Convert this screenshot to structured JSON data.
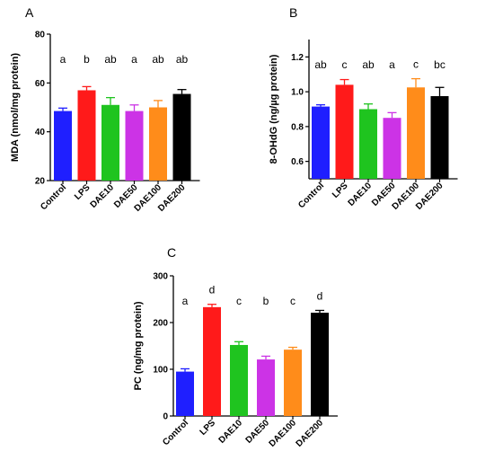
{
  "colors": {
    "Control": "#1f1fff",
    "LPS": "#ff1a1a",
    "DAE10": "#1fc41f",
    "DAE50": "#cc33e6",
    "DAE100": "#ff8c1a",
    "DAE200": "#000000"
  },
  "chart_data": [
    {
      "panel": "A",
      "type": "bar",
      "ylabel": "MDA (nmol/mg protein)",
      "ylim": [
        20,
        80
      ],
      "yticks": [
        20,
        40,
        60,
        80
      ],
      "categories": [
        "Control",
        "LPS",
        "DAE10",
        "DAE50",
        "DAE100",
        "DAE200"
      ],
      "values": [
        48.5,
        57,
        51,
        48.5,
        50,
        55.5
      ],
      "errors": [
        1.2,
        1.5,
        3,
        2.5,
        2.8,
        1.8
      ],
      "significance": [
        "a",
        "b",
        "ab",
        "a",
        "ab",
        "ab"
      ]
    },
    {
      "panel": "B",
      "type": "bar",
      "ylabel": "8-OHdG (ng/µg protein)",
      "ylim": [
        0.5,
        1.3
      ],
      "yticks": [
        0.6,
        0.8,
        1.0,
        1.2
      ],
      "yticklabels": [
        "0.6",
        "0.8",
        "1.0",
        "1.2"
      ],
      "categories": [
        "Control",
        "LPS",
        "DAE10",
        "DAE50",
        "DAE100",
        "DAE200"
      ],
      "values": [
        0.915,
        1.04,
        0.9,
        0.85,
        1.025,
        0.975
      ],
      "errors": [
        0.01,
        0.03,
        0.03,
        0.03,
        0.05,
        0.05
      ],
      "significance": [
        "ab",
        "c",
        "ab",
        "a",
        "c",
        "bc"
      ]
    },
    {
      "panel": "C",
      "type": "bar",
      "ylabel": "PC (ng/mg protein)",
      "ylim": [
        0,
        300
      ],
      "yticks": [
        0,
        100,
        200,
        300
      ],
      "categories": [
        "Control",
        "LPS",
        "DAE10",
        "DAE50",
        "DAE100",
        "DAE200"
      ],
      "values": [
        95,
        233,
        152,
        121,
        142,
        221
      ],
      "errors": [
        6,
        6,
        7,
        7,
        5,
        5
      ],
      "significance": [
        "a",
        "d",
        "c",
        "b",
        "c",
        "d"
      ]
    }
  ]
}
